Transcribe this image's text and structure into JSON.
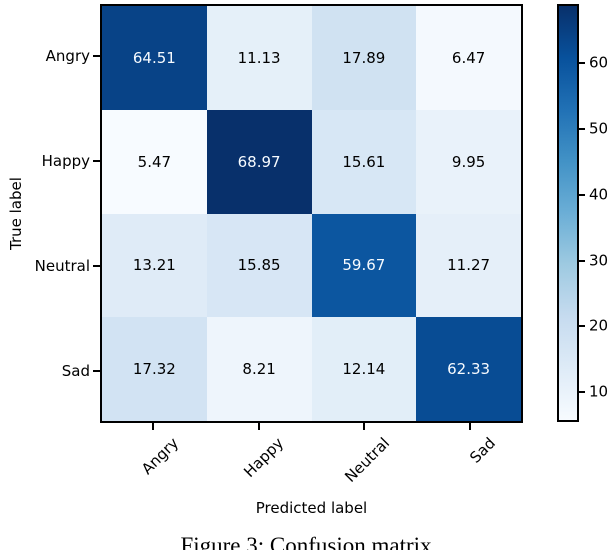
{
  "figure": {
    "caption": "Figure 3: Confusion matrix"
  },
  "chart_data": {
    "type": "heatmap",
    "title": "",
    "xlabel": "Predicted label",
    "ylabel": "True label",
    "x_tick_labels": [
      "Angry",
      "Happy",
      "Neutral",
      "Sad"
    ],
    "y_tick_labels": [
      "Angry",
      "Happy",
      "Neutral",
      "Sad"
    ],
    "matrix": [
      [
        64.51,
        11.13,
        17.89,
        6.47
      ],
      [
        5.47,
        68.97,
        15.61,
        9.95
      ],
      [
        13.21,
        15.85,
        59.67,
        11.27
      ],
      [
        17.32,
        8.21,
        12.14,
        62.33
      ]
    ],
    "value_format": "2dp",
    "colormap": "Blues",
    "vmin": 5.47,
    "vmax": 68.97,
    "colorbar_ticks": [
      10,
      20,
      30,
      40,
      50,
      60
    ],
    "colorbar_position": "right",
    "grid": false,
    "colors": {
      "cell_text_on_dark": "#f7fbff",
      "cell_text_on_light": "#000000",
      "axis_spine": "#000000",
      "colormap_min": "#f7fbff",
      "colormap_max": "#08306b"
    }
  }
}
